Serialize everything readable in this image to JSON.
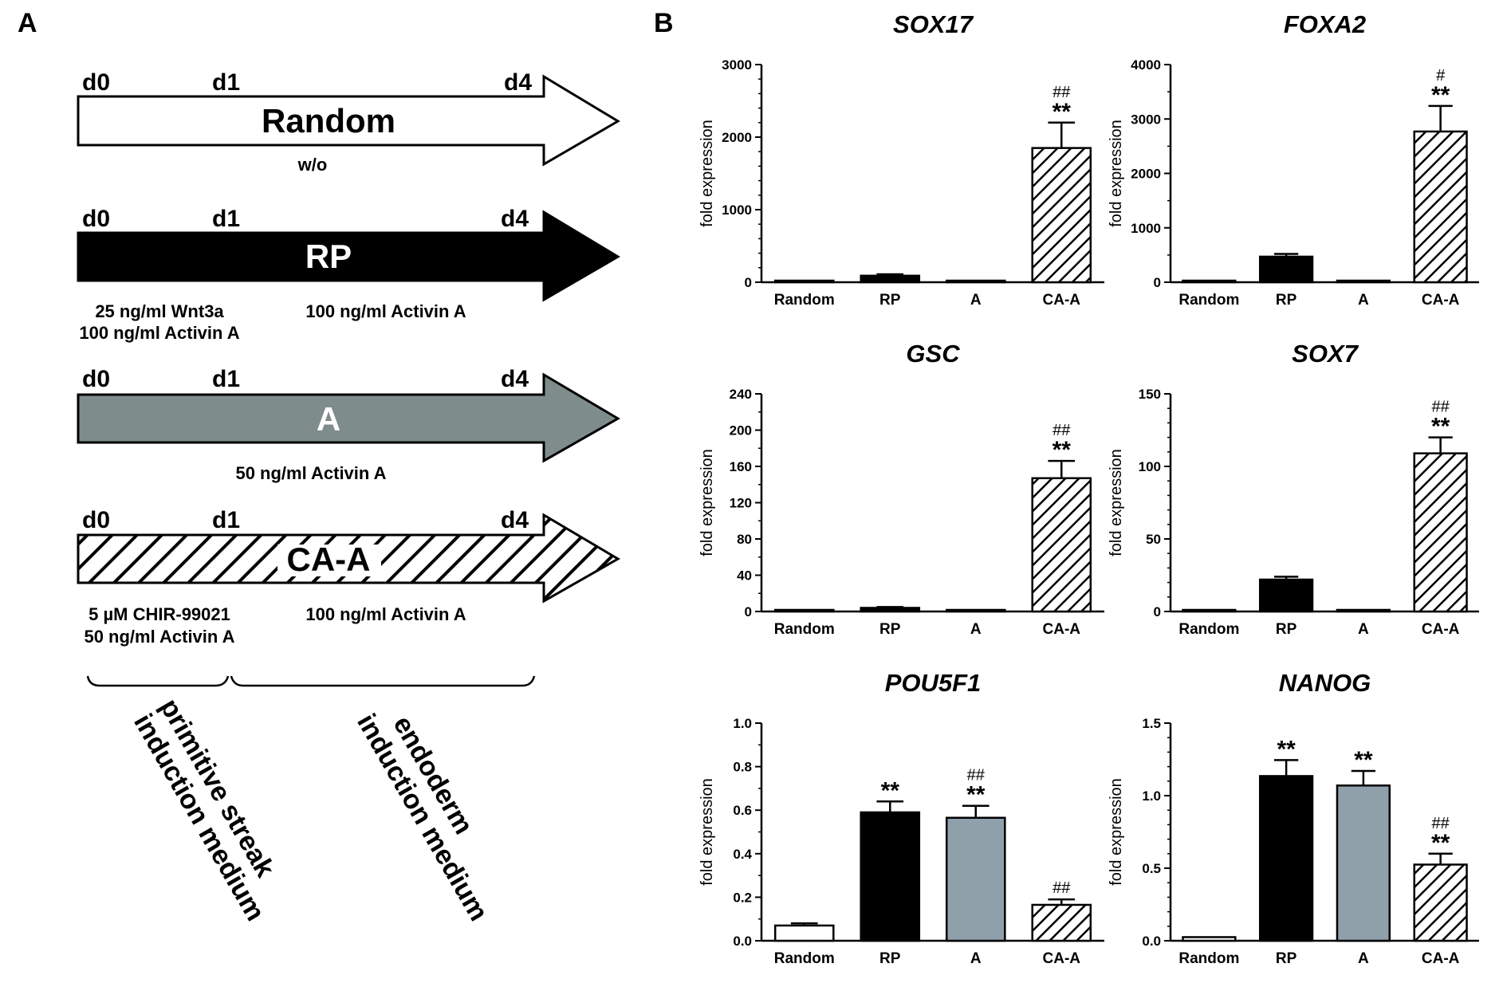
{
  "panel_a": {
    "label": "A",
    "day_labels": [
      "d0",
      "d1",
      "d4"
    ],
    "arrows": [
      {
        "name": "Random",
        "label": "Random",
        "style": "white",
        "fill": "#ffffff",
        "text_color": "#000000",
        "media": [
          "w/o"
        ]
      },
      {
        "name": "RP",
        "label": "RP",
        "style": "black",
        "fill": "#000000",
        "text_color": "#ffffff",
        "media": [
          "25 ng/ml Wnt3a",
          "100 ng/ml Activin A",
          "100 ng/ml Activin A"
        ]
      },
      {
        "name": "A",
        "label": "A",
        "style": "gray",
        "fill": "#7f8c8c",
        "text_color": "#ffffff",
        "media": [
          "50 ng/ml Activin A"
        ]
      },
      {
        "name": "CA-A",
        "label": "CA-A",
        "style": "hatched",
        "fill": "#ffffff",
        "text_color": "#000000",
        "media": [
          "5 µM CHIR-99021",
          "50 ng/ml Activin A",
          "100 ng/ml Activin A"
        ]
      }
    ],
    "phase_1": [
      "primitive streak",
      "induction medium"
    ],
    "phase_2": [
      "endoderm",
      "induction medium"
    ]
  },
  "panel_b": {
    "label": "B",
    "ylabel": "fold expression",
    "colors": {
      "Random": "#ffffff",
      "RP": "#000000",
      "A": "#8fa0ab",
      "CA-A": "hatch"
    }
  },
  "chart_data": [
    {
      "type": "bar",
      "title": "SOX17",
      "categories": [
        "Random",
        "RP",
        "A",
        "CA-A"
      ],
      "values": [
        1,
        90,
        1,
        1850
      ],
      "errors": [
        0,
        20,
        0,
        350
      ],
      "ylim": [
        0,
        3000
      ],
      "yticks": [
        0,
        1000,
        2000,
        3000
      ],
      "annotations": [
        "",
        "",
        "",
        "**"
      ],
      "annotations2": [
        "",
        "",
        "",
        "##"
      ]
    },
    {
      "type": "bar",
      "title": "FOXA2",
      "categories": [
        "Random",
        "RP",
        "A",
        "CA-A"
      ],
      "values": [
        1,
        470,
        1,
        2770
      ],
      "errors": [
        0,
        50,
        0,
        470
      ],
      "ylim": [
        0,
        4000
      ],
      "yticks": [
        0,
        1000,
        2000,
        3000,
        4000
      ],
      "annotations": [
        "",
        "",
        "",
        "**"
      ],
      "annotations2": [
        "",
        "",
        "",
        "#"
      ]
    },
    {
      "type": "bar",
      "title": "GSC",
      "categories": [
        "Random",
        "RP",
        "A",
        "CA-A"
      ],
      "values": [
        1,
        4,
        1,
        147
      ],
      "errors": [
        0,
        1,
        0,
        19
      ],
      "ylim": [
        0,
        240
      ],
      "yticks": [
        0,
        40,
        80,
        120,
        160,
        200,
        240
      ],
      "annotations": [
        "",
        "",
        "",
        "**"
      ],
      "annotations2": [
        "",
        "",
        "",
        "##"
      ]
    },
    {
      "type": "bar",
      "title": "SOX7",
      "categories": [
        "Random",
        "RP",
        "A",
        "CA-A"
      ],
      "values": [
        1,
        22,
        1,
        109
      ],
      "errors": [
        0,
        2,
        0,
        11
      ],
      "ylim": [
        0,
        150
      ],
      "yticks": [
        0,
        50,
        100,
        150
      ],
      "annotations": [
        "",
        "",
        "",
        "**"
      ],
      "annotations2": [
        "",
        "",
        "",
        "##"
      ]
    },
    {
      "type": "bar",
      "title": "POU5F1",
      "categories": [
        "Random",
        "RP",
        "A",
        "CA-A"
      ],
      "values": [
        0.07,
        0.59,
        0.565,
        0.165
      ],
      "errors": [
        0.01,
        0.05,
        0.055,
        0.025
      ],
      "ylim": [
        0,
        1.0
      ],
      "yticks": [
        0.0,
        0.2,
        0.4,
        0.6,
        0.8,
        1.0
      ],
      "decimals": 1,
      "annotations": [
        "",
        "**",
        "**",
        ""
      ],
      "annotations2": [
        "",
        "",
        "##",
        "##"
      ]
    },
    {
      "type": "bar",
      "title": "NANOG",
      "categories": [
        "Random",
        "RP",
        "A",
        "CA-A"
      ],
      "values": [
        0.025,
        1.135,
        1.07,
        0.525
      ],
      "errors": [
        0,
        0.11,
        0.1,
        0.075
      ],
      "ylim": [
        0,
        1.5
      ],
      "yticks": [
        0.0,
        0.5,
        1.0,
        1.5
      ],
      "decimals": 1,
      "annotations": [
        "",
        "**",
        "**",
        "**"
      ],
      "annotations2": [
        "",
        "",
        "",
        "##"
      ]
    }
  ]
}
